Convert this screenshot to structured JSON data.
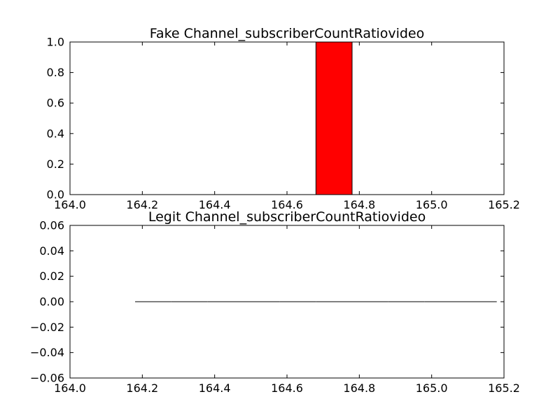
{
  "chart_data": [
    {
      "type": "bar",
      "title": "Fake Channel_subscriberCountRatiovideo",
      "xlabel": "",
      "ylabel": "",
      "xlim": [
        164.0,
        165.2
      ],
      "ylim": [
        0.0,
        1.0
      ],
      "xticks": [
        "164.0",
        "164.2",
        "164.4",
        "164.6",
        "164.8",
        "165.0",
        "165.2"
      ],
      "yticks": [
        "0.0",
        "0.2",
        "0.4",
        "0.6",
        "0.8",
        "1.0"
      ],
      "grid": false,
      "bar_color": "#ff0000",
      "bins": [
        {
          "x0": 164.18,
          "x1": 164.28,
          "value": 0.0
        },
        {
          "x0": 164.28,
          "x1": 164.38,
          "value": 0.0
        },
        {
          "x0": 164.38,
          "x1": 164.48,
          "value": 0.0
        },
        {
          "x0": 164.48,
          "x1": 164.58,
          "value": 0.0
        },
        {
          "x0": 164.58,
          "x1": 164.68,
          "value": 0.0
        },
        {
          "x0": 164.68,
          "x1": 164.78,
          "value": 1.0
        },
        {
          "x0": 164.78,
          "x1": 164.88,
          "value": 0.0
        },
        {
          "x0": 164.88,
          "x1": 164.98,
          "value": 0.0
        },
        {
          "x0": 164.98,
          "x1": 165.08,
          "value": 0.0
        },
        {
          "x0": 165.08,
          "x1": 165.18,
          "value": 0.0
        }
      ]
    },
    {
      "type": "bar",
      "title": "Legit Channel_subscriberCountRatiovideo",
      "xlabel": "",
      "ylabel": "",
      "xlim": [
        164.0,
        165.2
      ],
      "ylim": [
        -0.06,
        0.06
      ],
      "xticks": [
        "164.0",
        "164.2",
        "164.4",
        "164.6",
        "164.8",
        "165.0",
        "165.2"
      ],
      "yticks": [
        "−0.06",
        "−0.04",
        "−0.02",
        "0.00",
        "0.02",
        "0.04",
        "0.06"
      ],
      "grid": false,
      "bar_color": "#ff0000",
      "bins": [
        {
          "x0": 164.18,
          "x1": 164.28,
          "value": 0.0
        },
        {
          "x0": 164.28,
          "x1": 164.38,
          "value": 0.0
        },
        {
          "x0": 164.38,
          "x1": 164.48,
          "value": 0.0
        },
        {
          "x0": 164.48,
          "x1": 164.58,
          "value": 0.0
        },
        {
          "x0": 164.58,
          "x1": 164.68,
          "value": 0.0
        },
        {
          "x0": 164.68,
          "x1": 164.78,
          "value": 0.0
        },
        {
          "x0": 164.78,
          "x1": 164.88,
          "value": 0.0
        },
        {
          "x0": 164.88,
          "x1": 164.98,
          "value": 0.0
        },
        {
          "x0": 164.98,
          "x1": 165.08,
          "value": 0.0
        },
        {
          "x0": 165.08,
          "x1": 165.18,
          "value": 0.0
        }
      ]
    }
  ]
}
